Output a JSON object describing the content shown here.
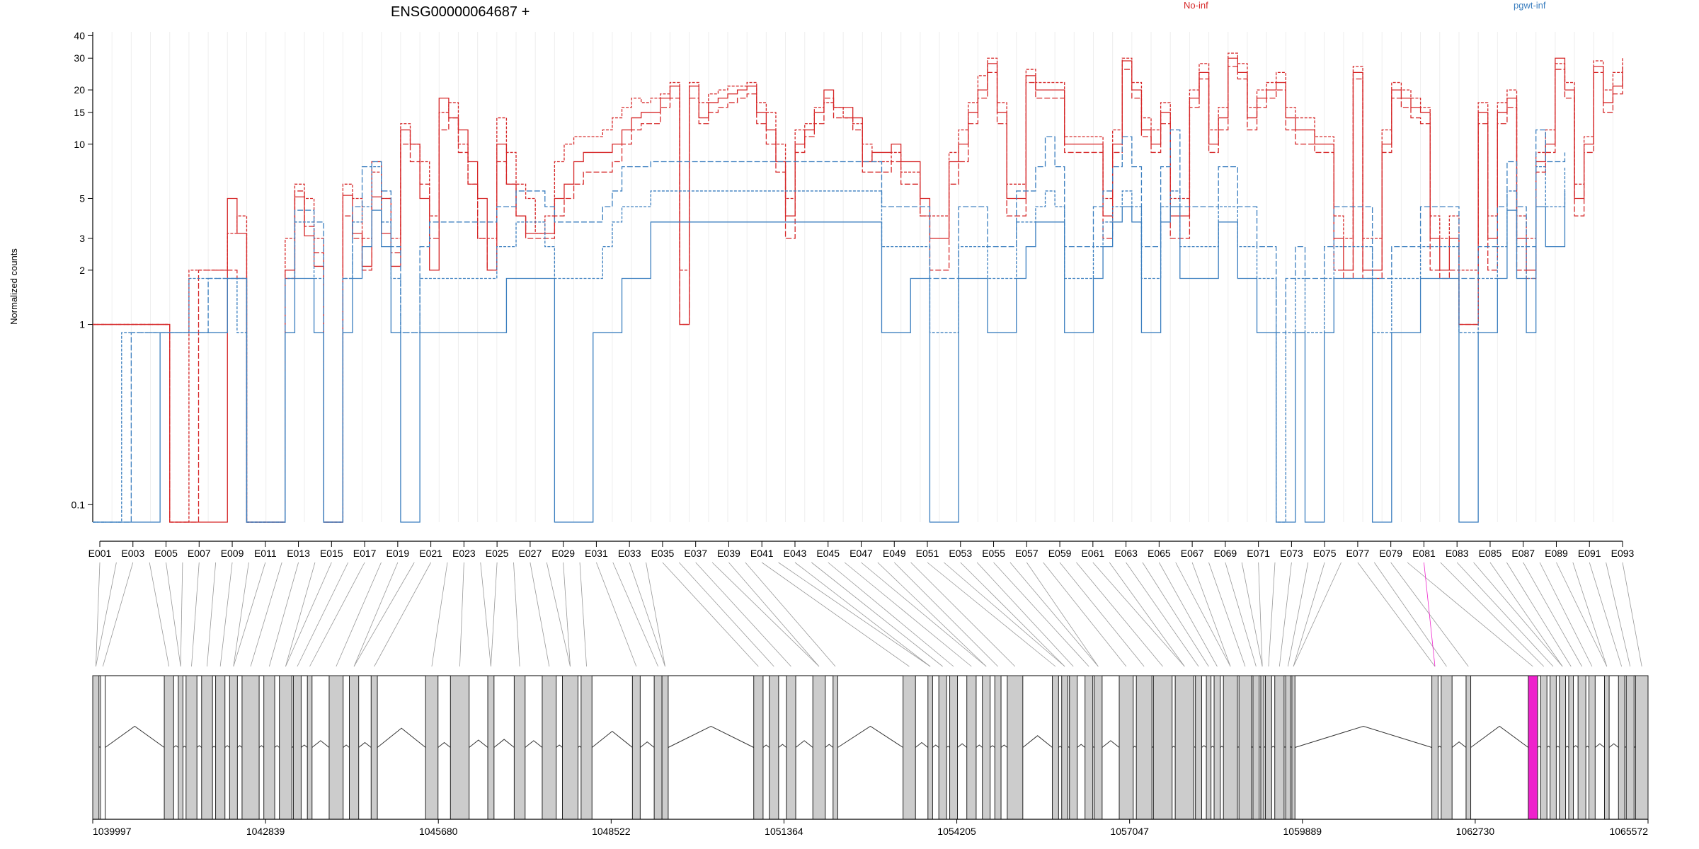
{
  "chart_data": {
    "type": "line",
    "title": "ENSG00000064687 +",
    "ylabel": "Normalized counts",
    "xlabel": "",
    "y_scale": "log",
    "ylim": [
      0.08,
      42
    ],
    "y_ticks": [
      0.1,
      1,
      2,
      3,
      5,
      10,
      15,
      20,
      30,
      40
    ],
    "y_tick_labels": [
      "0.1",
      "1",
      "2",
      "3",
      "5",
      "10",
      "15",
      "20",
      "30",
      "40"
    ],
    "legend_position": "top",
    "legend": [
      {
        "name": "No-inf",
        "color": "#d62728"
      },
      {
        "name": "pgwt-inf",
        "color": "#3a7ebf"
      }
    ],
    "bin_labels": [
      "E001",
      "E003",
      "E005",
      "E007",
      "E009",
      "E011",
      "E013",
      "E015",
      "E017",
      "E019",
      "E021",
      "E023",
      "E025",
      "E027",
      "E029",
      "E031",
      "E033",
      "E035",
      "E037",
      "E039",
      "E041",
      "E043",
      "E045",
      "E047",
      "E049",
      "E051",
      "E053",
      "E055",
      "E057",
      "E059",
      "E061",
      "E063",
      "E065",
      "E067",
      "E069",
      "E071",
      "E073",
      "E075",
      "E077",
      "E079",
      "E081",
      "E083",
      "E085",
      "E087",
      "E089",
      "E091",
      "E093"
    ],
    "series": [
      {
        "group": "No-inf",
        "color": "#d62728",
        "values": [
          1,
          1,
          1,
          1,
          1,
          1,
          1,
          1,
          0.08,
          0.08,
          0.08,
          0.08,
          0.08,
          0.08,
          5,
          3.2,
          0.08,
          0.08,
          0.08,
          0.08,
          2,
          5.1,
          3.1,
          2.1,
          0.08,
          0.08,
          5.2,
          3.2,
          2.1,
          5.1,
          3.2,
          2.1,
          12,
          10,
          5,
          2,
          18,
          14,
          12,
          8,
          5,
          2,
          10,
          6,
          4,
          3.2,
          3.2,
          3.2,
          5,
          6,
          8,
          9,
          9,
          9,
          10,
          12,
          14,
          15,
          15,
          18,
          21,
          1,
          21,
          14,
          17,
          18,
          19,
          20,
          21,
          15,
          12,
          8,
          4,
          10,
          12,
          15,
          20,
          16,
          16,
          14,
          8,
          9,
          9,
          10,
          8,
          8,
          5,
          3,
          3,
          8,
          10,
          15,
          20,
          28,
          15,
          5,
          5,
          24,
          20,
          20,
          20,
          10,
          10,
          10,
          10,
          4,
          10,
          29,
          20,
          12,
          10,
          15,
          4,
          4,
          18,
          25,
          10,
          14,
          30,
          25,
          14,
          18,
          20,
          22,
          14,
          12,
          12,
          10,
          10,
          3,
          2,
          25,
          2,
          2,
          10,
          20,
          18,
          16,
          15,
          3,
          2,
          3,
          1,
          1,
          15,
          3,
          15,
          18,
          3,
          2,
          8,
          10,
          30,
          20,
          5,
          10,
          27,
          17,
          21,
          27
        ]
      },
      {
        "group": "No-inf",
        "color": "#d62728",
        "values": [
          1,
          1,
          1,
          1,
          1,
          1,
          1,
          1,
          0.08,
          0.08,
          2,
          2,
          2,
          2,
          3.2,
          4,
          0.08,
          0.08,
          0.08,
          0.08,
          3,
          6,
          5,
          3,
          0.08,
          0.08,
          6,
          5,
          3,
          7,
          5,
          3,
          13,
          10,
          8,
          4,
          15,
          17,
          10,
          6,
          3,
          3,
          14,
          9,
          6,
          5,
          3.2,
          4,
          8,
          10,
          11,
          11,
          11,
          12,
          14,
          16,
          18,
          17,
          18,
          19,
          22,
          2,
          22,
          17,
          19,
          20,
          21,
          21,
          22,
          17,
          15,
          10,
          5,
          12,
          13,
          16,
          17,
          16,
          14,
          13,
          10,
          8,
          8,
          9,
          7,
          7,
          4,
          4,
          4,
          9,
          12,
          17,
          24,
          30,
          17,
          6,
          6,
          26,
          22,
          22,
          22,
          11,
          11,
          11,
          11,
          5,
          12,
          30,
          22,
          14,
          12,
          17,
          5,
          5,
          20,
          28,
          12,
          16,
          32,
          28,
          16,
          20,
          22,
          25,
          16,
          14,
          14,
          11,
          11,
          4,
          3,
          27,
          3,
          3,
          12,
          22,
          20,
          18,
          16,
          4,
          3,
          4,
          2,
          2,
          17,
          4,
          17,
          20,
          4,
          3,
          9,
          12,
          28,
          22,
          6,
          11,
          29,
          20,
          25,
          30
        ]
      },
      {
        "group": "No-inf",
        "color": "#d62728",
        "values": [
          1,
          1,
          1,
          1,
          1,
          1,
          1,
          1,
          0.08,
          0.08,
          0.08,
          2,
          2,
          2,
          2,
          1.8,
          0.08,
          0.08,
          0.08,
          0.08,
          1.8,
          5.5,
          3.5,
          2.5,
          0.08,
          0.08,
          4,
          3,
          2,
          8,
          5,
          2.5,
          10,
          8,
          6,
          3,
          12,
          14,
          9,
          6,
          3,
          2,
          8,
          6,
          4,
          3,
          3,
          3,
          4,
          5,
          6,
          7,
          7,
          7,
          8,
          10,
          12,
          13,
          13,
          16,
          18,
          1,
          18,
          13,
          15,
          16,
          17,
          18,
          19,
          13,
          10,
          7,
          3,
          9,
          11,
          13,
          18,
          14,
          14,
          12,
          7,
          7,
          7,
          8,
          6,
          6,
          4,
          2,
          2,
          6,
          8,
          13,
          18,
          25,
          13,
          4,
          4,
          22,
          18,
          18,
          18,
          9,
          9,
          9,
          9,
          3,
          9,
          26,
          18,
          11,
          9,
          13,
          3,
          3,
          16,
          23,
          9,
          12,
          27,
          23,
          12,
          16,
          18,
          20,
          12,
          10,
          10,
          9,
          9,
          2,
          1.8,
          23,
          1.8,
          1.8,
          9,
          18,
          16,
          14,
          13,
          2,
          1.8,
          2,
          1,
          1,
          13,
          2,
          13,
          16,
          2,
          1.8,
          7,
          9,
          26,
          18,
          4,
          9,
          25,
          15,
          19,
          25
        ]
      },
      {
        "group": "pgwt-inf",
        "color": "#3a7ebf",
        "values": [
          0.08,
          0.08,
          0.08,
          0.08,
          0.08,
          0.08,
          0.08,
          0.9,
          0.9,
          0.9,
          0.9,
          0.9,
          0.9,
          0.9,
          1.8,
          1.8,
          0.08,
          0.08,
          0.08,
          0.08,
          0.9,
          1.8,
          1.8,
          0.9,
          0.08,
          0.08,
          0.9,
          1.8,
          2.7,
          4.3,
          2.7,
          0.9,
          0.08,
          0.08,
          0.9,
          0.9,
          0.9,
          0.9,
          0.9,
          0.9,
          0.9,
          0.9,
          0.9,
          1.8,
          1.8,
          1.8,
          1.8,
          1.8,
          0.08,
          0.08,
          0.08,
          0.08,
          0.9,
          0.9,
          0.9,
          1.8,
          1.8,
          1.8,
          3.7,
          3.7,
          3.7,
          3.7,
          3.7,
          3.7,
          3.7,
          3.7,
          3.7,
          3.7,
          3.7,
          3.7,
          3.7,
          3.7,
          3.7,
          3.7,
          3.7,
          3.7,
          3.7,
          3.7,
          3.7,
          3.7,
          3.7,
          3.7,
          0.9,
          0.9,
          0.9,
          1.8,
          1.8,
          0.08,
          0.08,
          0.08,
          1.8,
          1.8,
          1.8,
          0.9,
          0.9,
          0.9,
          1.8,
          2.7,
          3.7,
          3.7,
          3.7,
          0.9,
          0.9,
          0.9,
          1.8,
          2.7,
          3.7,
          4.5,
          3.7,
          0.9,
          0.9,
          3.7,
          4.5,
          1.8,
          1.8,
          1.8,
          1.8,
          3.7,
          3.7,
          1.8,
          1.8,
          0.9,
          0.9,
          0.08,
          0.08,
          0.9,
          0.08,
          0.08,
          0.9,
          1.8,
          1.8,
          1.8,
          1.8,
          0.08,
          0.08,
          0.9,
          0.9,
          0.9,
          1.8,
          1.8,
          1.8,
          1.8,
          0.08,
          0.08,
          0.9,
          0.9,
          1.8,
          4.3,
          1.8,
          0.9,
          4.5,
          2.7,
          2.7,
          5.5
        ]
      },
      {
        "group": "pgwt-inf",
        "color": "#3a7ebf",
        "values": [
          0.08,
          0.08,
          0.08,
          0.9,
          0.9,
          0.9,
          0.9,
          0.9,
          0.9,
          0.9,
          1.8,
          1.8,
          1.8,
          1.8,
          1.8,
          0.9,
          0.08,
          0.08,
          0.08,
          0.08,
          1.8,
          3.7,
          3.7,
          1.8,
          0.08,
          0.08,
          1.8,
          3.7,
          4.5,
          7.5,
          3.7,
          1.8,
          0.9,
          0.9,
          1.8,
          1.8,
          1.8,
          1.8,
          1.8,
          1.8,
          1.8,
          1.8,
          2.7,
          2.7,
          3.7,
          3.7,
          3.7,
          2.7,
          1.8,
          1.8,
          1.8,
          1.8,
          1.8,
          2.7,
          3.7,
          4.5,
          4.5,
          4.5,
          5.5,
          5.5,
          5.5,
          5.5,
          5.5,
          5.5,
          5.5,
          5.5,
          5.5,
          5.5,
          5.5,
          5.5,
          5.5,
          5.5,
          5.5,
          5.5,
          5.5,
          5.5,
          5.5,
          5.5,
          5.5,
          5.5,
          5.5,
          5.5,
          2.7,
          2.7,
          2.7,
          2.7,
          2.7,
          0.9,
          0.9,
          0.9,
          2.7,
          2.7,
          2.7,
          1.8,
          1.8,
          1.8,
          3.7,
          3.7,
          4.5,
          5.5,
          4.5,
          1.8,
          1.8,
          1.8,
          2.7,
          3.7,
          4.5,
          5.5,
          4.5,
          1.8,
          1.8,
          4.5,
          5.5,
          2.7,
          2.7,
          2.7,
          2.7,
          4.5,
          4.5,
          2.7,
          2.7,
          1.8,
          1.8,
          0.08,
          0.9,
          1.8,
          0.9,
          0.9,
          1.8,
          2.7,
          2.7,
          2.7,
          2.7,
          0.9,
          0.9,
          1.8,
          1.8,
          1.8,
          2.7,
          2.7,
          2.7,
          2.7,
          0.9,
          0.9,
          1.8,
          1.8,
          2.7,
          5.5,
          2.7,
          1.8,
          7.5,
          4.5,
          4.5,
          7.5
        ]
      },
      {
        "group": "pgwt-inf",
        "color": "#3a7ebf",
        "values": [
          0.08,
          0.08,
          0.08,
          0.08,
          0.9,
          0.9,
          0.9,
          0.9,
          0.9,
          0.9,
          0.9,
          0.9,
          1.8,
          1.8,
          1.8,
          1.8,
          0.08,
          0.08,
          0.08,
          0.08,
          1.8,
          4.3,
          4.3,
          3.7,
          0.08,
          0.08,
          1.8,
          4.5,
          7.5,
          8,
          5.5,
          2.7,
          0.9,
          0.9,
          2.7,
          3.7,
          3.7,
          3.7,
          3.7,
          3.7,
          3.7,
          3.7,
          4.5,
          4.5,
          5.5,
          5.5,
          5.5,
          4.5,
          3.7,
          3.7,
          3.7,
          3.7,
          3.7,
          4.5,
          5.5,
          7.5,
          7.5,
          7.5,
          8,
          8,
          8,
          8,
          8,
          8,
          8,
          8,
          8,
          8,
          8,
          8,
          8,
          8,
          8,
          8,
          8,
          8,
          8,
          8,
          8,
          8,
          8,
          8,
          4.5,
          4.5,
          4.5,
          4.5,
          4.5,
          1.8,
          1.8,
          1.8,
          4.5,
          4.5,
          4.5,
          2.7,
          2.7,
          2.7,
          5.5,
          5.5,
          7.5,
          11,
          7.5,
          2.7,
          2.7,
          2.7,
          4.5,
          5.5,
          7.5,
          11,
          7.5,
          2.7,
          2.7,
          7.5,
          12,
          4.5,
          4.5,
          4.5,
          4.5,
          7.5,
          7.5,
          4.5,
          4.5,
          2.7,
          2.7,
          0.9,
          1.8,
          2.7,
          1.8,
          1.8,
          2.7,
          4.5,
          4.5,
          4.5,
          4.5,
          1.8,
          1.8,
          2.7,
          2.7,
          2.7,
          4.5,
          4.5,
          4.5,
          4.5,
          1.8,
          1.8,
          2.7,
          2.7,
          4.5,
          8,
          4.5,
          2.7,
          12,
          8,
          8,
          9
        ]
      }
    ],
    "gene_track": {
      "x_ticks": [
        "1039997",
        "1042839",
        "1045680",
        "1048522",
        "1051364",
        "1054205",
        "1057047",
        "1059889",
        "1062730",
        "1065572"
      ],
      "xlim": [
        1039997,
        1065572
      ],
      "highlighted_exon_bin": "E081",
      "highlight_color": "#ee22cc",
      "exon_fill": "#cccccc"
    }
  }
}
